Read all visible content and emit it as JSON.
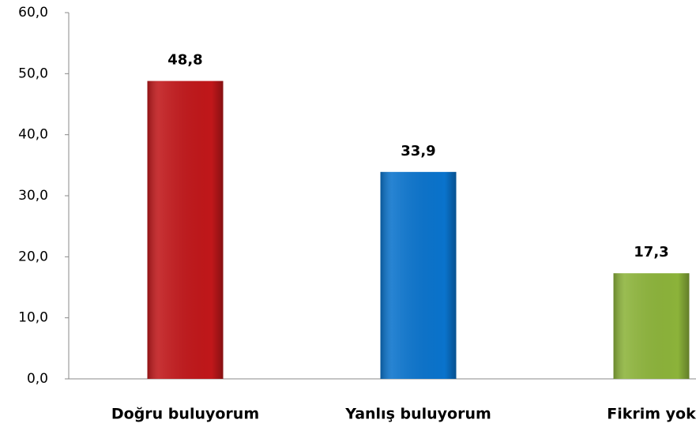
{
  "chart_data": {
    "type": "bar",
    "categories": [
      "Doğru buluyorum",
      "Yanlış buluyorum",
      "Fikrim yok"
    ],
    "values": [
      48.8,
      33.9,
      17.3
    ],
    "value_labels": [
      "48,8",
      "33,9",
      "17,3"
    ],
    "colors": [
      "#c0171a",
      "#0a73cc",
      "#8cb33a"
    ],
    "ylim": [
      0,
      60
    ],
    "yticks": [
      {
        "value": 0,
        "label": "0,0"
      },
      {
        "value": 10,
        "label": "10,0"
      },
      {
        "value": 20,
        "label": "20,0"
      },
      {
        "value": 30,
        "label": "30,0"
      },
      {
        "value": 40,
        "label": "40,0"
      },
      {
        "value": 50,
        "label": "50,0"
      },
      {
        "value": 60,
        "label": "60,0"
      }
    ],
    "grid": false
  }
}
